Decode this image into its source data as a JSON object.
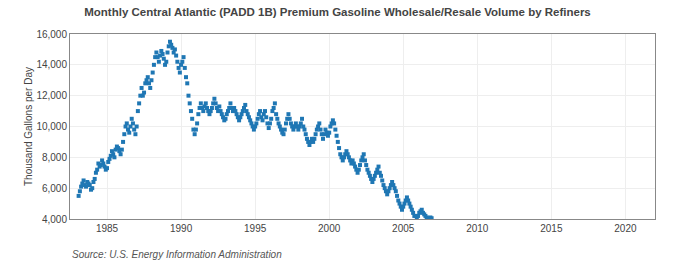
{
  "chart_data": {
    "type": "scatter",
    "title": "Monthly Central Atlantic (PADD 1B) Premium Gasoline Wholesale/Resale Volume by Refiners",
    "ylabel": "Thousand Gallons per Day",
    "annotations": [
      "Source: U.S. Energy Information Administration"
    ],
    "marker": "square",
    "grid": true,
    "xlim": [
      1982.5,
      2022
    ],
    "xticks": [
      1985,
      1990,
      1995,
      2000,
      2005,
      2010,
      2015,
      2020
    ],
    "ylim": [
      4000,
      16000
    ],
    "yticks": [
      {
        "value": 4000,
        "label": "4,000"
      },
      {
        "value": 6000,
        "label": "6,000"
      },
      {
        "value": 8000,
        "label": "8,000"
      },
      {
        "value": 10000,
        "label": "10,000"
      },
      {
        "value": 12000,
        "label": "12,000"
      },
      {
        "value": 14000,
        "label": "14,000"
      },
      {
        "value": 16000,
        "label": "16,000"
      }
    ],
    "x": [
      1983.083,
      1983.167,
      1983.25,
      1983.333,
      1983.417,
      1983.5,
      1983.583,
      1983.667,
      1983.75,
      1983.833,
      1983.917,
      1984.0,
      1984.083,
      1984.167,
      1984.25,
      1984.333,
      1984.417,
      1984.5,
      1984.583,
      1984.667,
      1984.75,
      1984.833,
      1984.917,
      1985.0,
      1985.083,
      1985.167,
      1985.25,
      1985.333,
      1985.417,
      1985.5,
      1985.583,
      1985.667,
      1985.75,
      1985.833,
      1985.917,
      1986.0,
      1986.083,
      1986.167,
      1986.25,
      1986.333,
      1986.417,
      1986.5,
      1986.583,
      1986.667,
      1986.75,
      1986.833,
      1986.917,
      1987.0,
      1987.083,
      1987.167,
      1987.25,
      1987.333,
      1987.417,
      1987.5,
      1987.583,
      1987.667,
      1987.75,
      1987.833,
      1987.917,
      1988.0,
      1988.083,
      1988.167,
      1988.25,
      1988.333,
      1988.417,
      1988.5,
      1988.583,
      1988.667,
      1988.75,
      1988.833,
      1988.917,
      1989.0,
      1989.083,
      1989.167,
      1989.25,
      1989.333,
      1989.417,
      1989.5,
      1989.583,
      1989.667,
      1989.75,
      1989.833,
      1989.917,
      1990.0,
      1990.083,
      1990.167,
      1990.25,
      1990.333,
      1990.417,
      1990.5,
      1990.583,
      1990.667,
      1990.75,
      1990.833,
      1990.917,
      1991.0,
      1991.083,
      1991.167,
      1991.25,
      1991.333,
      1991.417,
      1991.5,
      1991.583,
      1991.667,
      1991.75,
      1991.833,
      1991.917,
      1992.0,
      1992.083,
      1992.167,
      1992.25,
      1992.333,
      1992.417,
      1992.5,
      1992.583,
      1992.667,
      1992.75,
      1992.833,
      1992.917,
      1993.0,
      1993.083,
      1993.167,
      1993.25,
      1993.333,
      1993.417,
      1993.5,
      1993.583,
      1993.667,
      1993.75,
      1993.833,
      1993.917,
      1994.0,
      1994.083,
      1994.167,
      1994.25,
      1994.333,
      1994.417,
      1994.5,
      1994.583,
      1994.667,
      1994.75,
      1994.833,
      1994.917,
      1995.0,
      1995.083,
      1995.167,
      1995.25,
      1995.333,
      1995.417,
      1995.5,
      1995.583,
      1995.667,
      1995.75,
      1995.833,
      1995.917,
      1996.0,
      1996.083,
      1996.167,
      1996.25,
      1996.333,
      1996.417,
      1996.5,
      1996.583,
      1996.667,
      1996.75,
      1996.833,
      1996.917,
      1997.0,
      1997.083,
      1997.167,
      1997.25,
      1997.333,
      1997.417,
      1997.5,
      1997.583,
      1997.667,
      1997.75,
      1997.833,
      1997.917,
      1998.0,
      1998.083,
      1998.167,
      1998.25,
      1998.333,
      1998.417,
      1998.5,
      1998.583,
      1998.667,
      1998.75,
      1998.833,
      1998.917,
      1999.0,
      1999.083,
      1999.167,
      1999.25,
      1999.333,
      1999.417,
      1999.5,
      1999.583,
      1999.667,
      1999.75,
      1999.833,
      1999.917,
      2000.0,
      2000.083,
      2000.167,
      2000.25,
      2000.333,
      2000.417,
      2000.5,
      2000.583,
      2000.667,
      2000.75,
      2000.833,
      2000.917,
      2001.0,
      2001.083,
      2001.167,
      2001.25,
      2001.333,
      2001.417,
      2001.5,
      2001.583,
      2001.667,
      2001.75,
      2001.833,
      2001.917,
      2002.0,
      2002.083,
      2002.167,
      2002.25,
      2002.333,
      2002.417,
      2002.5,
      2002.583,
      2002.667,
      2002.75,
      2002.833,
      2002.917,
      2003.0,
      2003.083,
      2003.167,
      2003.25,
      2003.333,
      2003.417,
      2003.5,
      2003.583,
      2003.667,
      2003.75,
      2003.833,
      2003.917,
      2004.0,
      2004.083,
      2004.167,
      2004.25,
      2004.333,
      2004.417,
      2004.5,
      2004.583,
      2004.667,
      2004.75,
      2004.833,
      2004.917,
      2005.0,
      2005.083,
      2005.167,
      2005.25,
      2005.333,
      2005.417,
      2005.5,
      2005.583,
      2005.667,
      2005.75,
      2005.833,
      2005.917,
      2006.0,
      2006.083,
      2006.167,
      2006.25,
      2006.333,
      2006.417,
      2006.5,
      2006.583,
      2006.667,
      2006.75,
      2006.833,
      2006.917
    ],
    "values": [
      5500,
      5800,
      6100,
      6300,
      6500,
      6200,
      6100,
      6400,
      6300,
      6200,
      5900,
      6000,
      6400,
      6600,
      7000,
      7200,
      7600,
      7400,
      7500,
      7800,
      7600,
      7400,
      7200,
      7300,
      7700,
      7900,
      8100,
      8400,
      8200,
      8000,
      8500,
      8700,
      8600,
      8400,
      8200,
      8500,
      9000,
      9500,
      10000,
      10200,
      9800,
      9600,
      10000,
      10500,
      10200,
      9800,
      9500,
      10000,
      11000,
      11500,
      12000,
      12500,
      12000,
      12200,
      12800,
      13000,
      13200,
      12800,
      12500,
      13000,
      13500,
      14000,
      14500,
      14800,
      14500,
      14200,
      14600,
      14900,
      14700,
      14400,
      14000,
      14200,
      14800,
      15200,
      15500,
      15300,
      15100,
      14800,
      15000,
      14600,
      14200,
      13800,
      13500,
      14000,
      14200,
      14500,
      13800,
      13200,
      12800,
      12000,
      11500,
      11000,
      10500,
      9800,
      9500,
      9800,
      10200,
      10800,
      11200,
      11500,
      11200,
      11000,
      11300,
      11500,
      11200,
      11000,
      10800,
      11000,
      11200,
      11500,
      11800,
      11500,
      11200,
      11000,
      11300,
      11000,
      10800,
      10600,
      10400,
      10500,
      10800,
      11000,
      11200,
      11500,
      11200,
      11000,
      11200,
      11000,
      10800,
      10600,
      10400,
      10600,
      10800,
      11000,
      11200,
      11400,
      11000,
      10800,
      10600,
      10400,
      10200,
      10000,
      9800,
      10000,
      10200,
      10500,
      10800,
      11000,
      10600,
      10400,
      10800,
      11000,
      10600,
      10200,
      9900,
      10200,
      10500,
      11000,
      11200,
      11500,
      10800,
      10500,
      10200,
      10000,
      9800,
      9600,
      9500,
      9800,
      10200,
      10500,
      10800,
      10500,
      10200,
      10000,
      9800,
      10000,
      10200,
      10000,
      9800,
      10000,
      10200,
      10500,
      10000,
      9800,
      9500,
      9200,
      9000,
      8800,
      9000,
      9200,
      9000,
      9200,
      9500,
      9800,
      10000,
      10200,
      9800,
      9500,
      9200,
      9500,
      9800,
      9600,
      9400,
      9600,
      10000,
      10200,
      10400,
      10200,
      9800,
      9400,
      9000,
      8600,
      8200,
      8000,
      7800,
      8000,
      8200,
      8400,
      8200,
      8000,
      7800,
      7600,
      7800,
      7600,
      7400,
      7200,
      7000,
      7200,
      7500,
      7800,
      8000,
      8200,
      7800,
      7500,
      7200,
      7000,
      6800,
      6600,
      6400,
      6600,
      6800,
      7000,
      7200,
      7400,
      7000,
      6800,
      6500,
      6200,
      6000,
      5800,
      5600,
      5800,
      6000,
      6200,
      6400,
      6200,
      6000,
      5800,
      5500,
      5200,
      5000,
      4800,
      4600,
      4800,
      5000,
      5200,
      5400,
      5200,
      5000,
      4800,
      4600,
      4400,
      4200,
      4200,
      4100,
      4200,
      4400,
      4500,
      4600,
      4400,
      4300,
      4200,
      4100,
      4050,
      4000,
      4100,
      4050
    ]
  }
}
